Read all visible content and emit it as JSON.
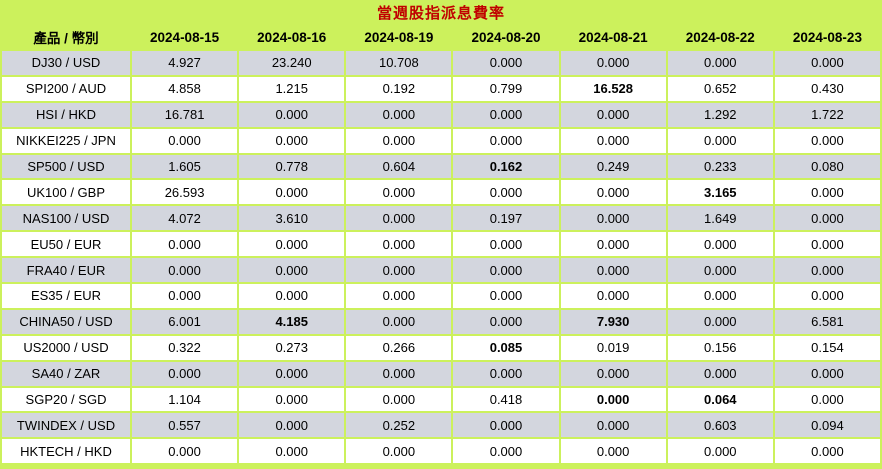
{
  "title": "當週股指派息費率",
  "colors": {
    "background": "#ccf15c",
    "title_text": "#c00000",
    "stripe_row": "#d3d6de",
    "plain_row": "#ffffff",
    "text": "#000000"
  },
  "table": {
    "product_header": "產品 / 幣別",
    "date_headers": [
      "2024-08-15",
      "2024-08-16",
      "2024-08-19",
      "2024-08-20",
      "2024-08-21",
      "2024-08-22",
      "2024-08-23"
    ],
    "rows": [
      {
        "product": "DJ30 / USD",
        "values": [
          "4.927",
          "23.240",
          "10.708",
          "0.000",
          "0.000",
          "0.000",
          "0.000"
        ],
        "bold": []
      },
      {
        "product": "SPI200 / AUD",
        "values": [
          "4.858",
          "1.215",
          "0.192",
          "0.799",
          "16.528",
          "0.652",
          "0.430"
        ],
        "bold": [
          4
        ]
      },
      {
        "product": "HSI / HKD",
        "values": [
          "16.781",
          "0.000",
          "0.000",
          "0.000",
          "0.000",
          "1.292",
          "1.722"
        ],
        "bold": []
      },
      {
        "product": "NIKKEI225 / JPN",
        "values": [
          "0.000",
          "0.000",
          "0.000",
          "0.000",
          "0.000",
          "0.000",
          "0.000"
        ],
        "bold": []
      },
      {
        "product": "SP500 / USD",
        "values": [
          "1.605",
          "0.778",
          "0.604",
          "0.162",
          "0.249",
          "0.233",
          "0.080"
        ],
        "bold": [
          3
        ]
      },
      {
        "product": "UK100 / GBP",
        "values": [
          "26.593",
          "0.000",
          "0.000",
          "0.000",
          "0.000",
          "3.165",
          "0.000"
        ],
        "bold": [
          5
        ]
      },
      {
        "product": "NAS100 / USD",
        "values": [
          "4.072",
          "3.610",
          "0.000",
          "0.197",
          "0.000",
          "1.649",
          "0.000"
        ],
        "bold": []
      },
      {
        "product": "EU50 / EUR",
        "values": [
          "0.000",
          "0.000",
          "0.000",
          "0.000",
          "0.000",
          "0.000",
          "0.000"
        ],
        "bold": []
      },
      {
        "product": "FRA40 / EUR",
        "values": [
          "0.000",
          "0.000",
          "0.000",
          "0.000",
          "0.000",
          "0.000",
          "0.000"
        ],
        "bold": []
      },
      {
        "product": "ES35 / EUR",
        "values": [
          "0.000",
          "0.000",
          "0.000",
          "0.000",
          "0.000",
          "0.000",
          "0.000"
        ],
        "bold": []
      },
      {
        "product": "CHINA50 / USD",
        "values": [
          "6.001",
          "4.185",
          "0.000",
          "0.000",
          "7.930",
          "0.000",
          "6.581"
        ],
        "bold": [
          1,
          4
        ]
      },
      {
        "product": "US2000 / USD",
        "values": [
          "0.322",
          "0.273",
          "0.266",
          "0.085",
          "0.019",
          "0.156",
          "0.154"
        ],
        "bold": [
          3
        ]
      },
      {
        "product": "SA40 / ZAR",
        "values": [
          "0.000",
          "0.000",
          "0.000",
          "0.000",
          "0.000",
          "0.000",
          "0.000"
        ],
        "bold": []
      },
      {
        "product": "SGP20 / SGD",
        "values": [
          "1.104",
          "0.000",
          "0.000",
          "0.418",
          "0.000",
          "0.064",
          "0.000"
        ],
        "bold": [
          4,
          5
        ]
      },
      {
        "product": "TWINDEX / USD",
        "values": [
          "0.557",
          "0.000",
          "0.252",
          "0.000",
          "0.000",
          "0.603",
          "0.094"
        ],
        "bold": []
      },
      {
        "product": "HKTECH / HKD",
        "values": [
          "0.000",
          "0.000",
          "0.000",
          "0.000",
          "0.000",
          "0.000",
          "0.000"
        ],
        "bold": []
      }
    ]
  }
}
